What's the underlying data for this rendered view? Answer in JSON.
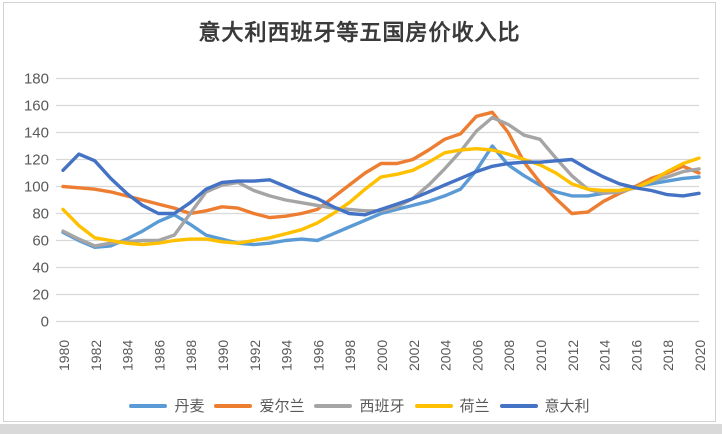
{
  "title": "意大利西班牙等五国房价收入比",
  "colors": {
    "title_text": "#3a3a3a",
    "axis_label_text": "#595959",
    "gridline": "#d9d9d9",
    "chart_border": "#d2d2d2",
    "window_strip": "#d9d9d9",
    "series_denmark": "#5B9BD5",
    "series_ireland": "#ED7D31",
    "series_spain": "#A5A5A5",
    "series_netherlands": "#FFC000",
    "series_italy": "#4472C4"
  },
  "chart_data": {
    "type": "line",
    "title": "意大利西班牙等五国房价收入比",
    "xlabel": "",
    "ylabel": "",
    "x": [
      1980,
      1981,
      1982,
      1983,
      1984,
      1985,
      1986,
      1987,
      1988,
      1989,
      1990,
      1991,
      1992,
      1993,
      1994,
      1995,
      1996,
      1997,
      1998,
      1999,
      2000,
      2001,
      2002,
      2003,
      2004,
      2005,
      2006,
      2007,
      2008,
      2009,
      2010,
      2011,
      2012,
      2013,
      2014,
      2015,
      2016,
      2017,
      2018,
      2019,
      2020
    ],
    "x_tick_labels": [
      "1980",
      "1982",
      "1984",
      "1986",
      "1988",
      "1990",
      "1992",
      "1994",
      "1996",
      "1998",
      "2000",
      "2002",
      "2004",
      "2006",
      "2008",
      "2010",
      "2012",
      "2014",
      "2016",
      "2018",
      "2020"
    ],
    "x_tick_rotation": 90,
    "y_ticks": [
      0,
      20,
      40,
      60,
      80,
      100,
      120,
      140,
      160,
      180
    ],
    "ylim": [
      0,
      180
    ],
    "grid": true,
    "legend_position": "bottom",
    "series": [
      {
        "name": "丹麦",
        "color": "#5B9BD5",
        "values": [
          66,
          60,
          55,
          56,
          61,
          67,
          74,
          79,
          72,
          64,
          61,
          58,
          57,
          58,
          60,
          61,
          60,
          65,
          70,
          75,
          80,
          83,
          86,
          89,
          93,
          98,
          112,
          130,
          116,
          108,
          101,
          96,
          93,
          93,
          95,
          97,
          100,
          102,
          104,
          106,
          107
        ]
      },
      {
        "name": "爱尔兰",
        "color": "#ED7D31",
        "values": [
          100,
          99,
          98,
          96,
          93,
          90,
          87,
          84,
          80,
          82,
          85,
          84,
          80,
          77,
          78,
          80,
          83,
          92,
          101,
          110,
          117,
          117,
          120,
          127,
          135,
          139,
          152,
          155,
          140,
          118,
          103,
          91,
          80,
          81,
          89,
          95,
          100,
          106,
          110,
          115,
          110
        ]
      },
      {
        "name": "西班牙",
        "color": "#A5A5A5",
        "values": [
          67,
          61,
          56,
          58,
          59,
          60,
          60,
          64,
          80,
          96,
          101,
          103,
          97,
          93,
          90,
          88,
          86,
          84,
          83,
          82,
          82,
          85,
          91,
          101,
          113,
          126,
          141,
          151,
          146,
          138,
          135,
          121,
          108,
          98,
          95,
          96,
          99,
          104,
          107,
          111,
          113
        ]
      },
      {
        "name": "荷兰",
        "color": "#FFC000",
        "values": [
          83,
          71,
          62,
          60,
          58,
          57,
          58,
          60,
          61,
          61,
          59,
          58,
          60,
          62,
          65,
          68,
          73,
          80,
          88,
          98,
          107,
          109,
          112,
          118,
          125,
          127,
          128,
          127,
          124,
          120,
          116,
          110,
          102,
          98,
          97,
          97,
          99,
          104,
          111,
          117,
          121
        ]
      },
      {
        "name": "意大利",
        "color": "#4472C4",
        "values": [
          112,
          124,
          119,
          106,
          95,
          86,
          80,
          80,
          88,
          98,
          103,
          104,
          104,
          105,
          100,
          95,
          91,
          85,
          80,
          79,
          83,
          87,
          91,
          96,
          101,
          106,
          111,
          115,
          117,
          118,
          118,
          119,
          120,
          113,
          107,
          102,
          99,
          97,
          94,
          93,
          95
        ]
      }
    ]
  }
}
